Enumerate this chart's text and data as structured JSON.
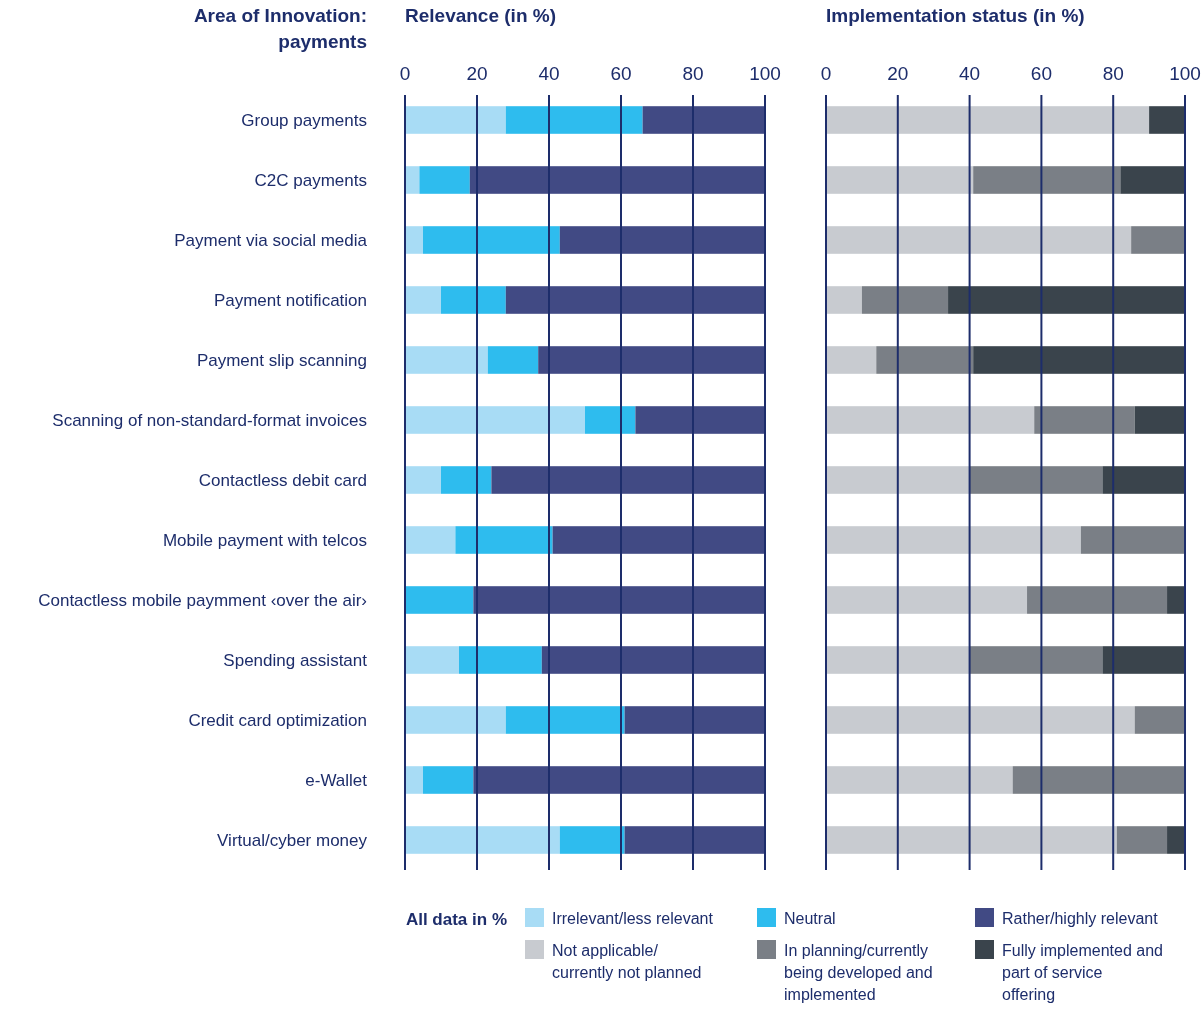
{
  "chart_data": [
    {
      "type": "bar",
      "orientation": "horizontal",
      "stacked": true,
      "title": "Relevance (in %)",
      "ylabel": "Area of Innovation: payments",
      "categories": [
        "Group payments",
        "C2C payments",
        "Payment via social media",
        "Payment notification",
        "Payment slip scanning",
        "Scanning of non-standard-format invoices",
        "Contactless debit card",
        "Mobile payment with telcos",
        "Contactless mobile paymment ‹over the air›",
        "Spending assistant",
        "Credit card optimization",
        "e-Wallet",
        "Virtual/cyber money"
      ],
      "series": [
        {
          "name": "Irrelevant/less relevant",
          "color": "#a8dcf5",
          "values": [
            28,
            4,
            5,
            10,
            23,
            50,
            10,
            14,
            0,
            15,
            28,
            5,
            43
          ]
        },
        {
          "name": "Neutral",
          "color": "#2ebcee",
          "values": [
            38,
            14,
            38,
            18,
            14,
            14,
            14,
            27,
            19,
            23,
            33,
            14,
            18
          ]
        },
        {
          "name": "Rather/highly relevant",
          "color": "#414a84",
          "values": [
            34,
            82,
            57,
            72,
            63,
            36,
            76,
            59,
            81,
            62,
            39,
            81,
            39
          ]
        }
      ],
      "xlim": [
        0,
        100
      ],
      "xticks": [
        0,
        20,
        40,
        60,
        80,
        100
      ],
      "grid": "x",
      "legend": "bottom",
      "annotations": [
        "All data in %"
      ]
    },
    {
      "type": "bar",
      "orientation": "horizontal",
      "stacked": true,
      "title": "Implementation status (in %)",
      "categories": [
        null,
        null,
        null,
        null,
        null,
        null,
        null,
        null,
        null,
        null,
        null,
        null,
        null
      ],
      "series": [
        {
          "name": "Not applicable/ currently not planned",
          "color": "#c8cbd0",
          "values": [
            90,
            41,
            85,
            10,
            14,
            58,
            40,
            71,
            56,
            40,
            86,
            52,
            81
          ]
        },
        {
          "name": "In planning/currently being developed and implemented",
          "color": "#7a7f86",
          "values": [
            0,
            41,
            15,
            24,
            27,
            28,
            37,
            29,
            39,
            37,
            14,
            48,
            14
          ]
        },
        {
          "name": "Fully implemented and part of service offering",
          "color": "#3a444c",
          "values": [
            10,
            18,
            0,
            66,
            59,
            14,
            23,
            0,
            5,
            23,
            0,
            0,
            5
          ]
        }
      ],
      "xlim": [
        0,
        100
      ],
      "xticks": [
        0,
        20,
        40,
        60,
        80,
        100
      ],
      "grid": "x",
      "legend": "bottom",
      "tick_labels": "x"
    }
  ]
}
